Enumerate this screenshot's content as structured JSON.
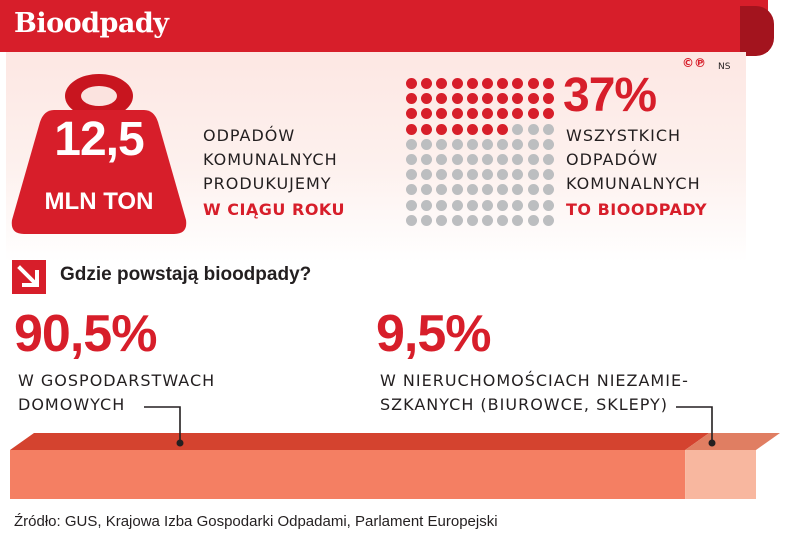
{
  "header": {
    "title": "Bioodpady"
  },
  "copyright": {
    "marks": "©℗",
    "tag": "NS"
  },
  "stats": {
    "weight": {
      "value": "12,5",
      "unit": "MLN TON",
      "lines": [
        "ODPADÓW",
        "KOMUNALNYCH",
        "PRODUKUJEMY"
      ],
      "highlight": "W CIĄGU ROKU"
    },
    "share": {
      "value": "37%",
      "lines": [
        "WSZYSTKICH",
        "ODPADÓW",
        "KOMUNALNYCH"
      ],
      "highlight": "TO BIOODPADY"
    }
  },
  "question": "Gdzie powstają bioodpady?",
  "segments": {
    "households": {
      "percent": "90,5%",
      "lines": [
        "W GOSPODARSTWACH",
        "DOMOWYCH"
      ]
    },
    "non_residential": {
      "percent": "9,5%",
      "lines": [
        "W NIERUCHOMOŚCIACH NIEZAMIE-",
        "SZKANYCH (BIUROWCE, SKLEPY)"
      ]
    }
  },
  "source": "Źródło: GUS, Krajowa Izba Gospodarki Odpadami, Parlament Europejski",
  "colors": {
    "accent": "#d71e2a",
    "dot_gray": "#bcbec0",
    "households_bar": "#f47f63",
    "households_bar_top": "#d4432f",
    "non_residential_bar": "#f8b79f",
    "non_residential_bar_top": "#e07e62"
  },
  "chart_data": [
    {
      "type": "waffle",
      "total_dots": 100,
      "highlighted_dots": 37,
      "value_label": "37%"
    },
    {
      "type": "bar",
      "orientation": "stacked-horizontal",
      "categories": [
        "W GOSPODARSTWACH DOMOWYCH",
        "W NIERUCHOMOŚCIACH NIEZAMIESZKANYCH (BIUROWCE, SKLEPY)"
      ],
      "values": [
        90.5,
        9.5
      ],
      "unit": "%"
    }
  ]
}
